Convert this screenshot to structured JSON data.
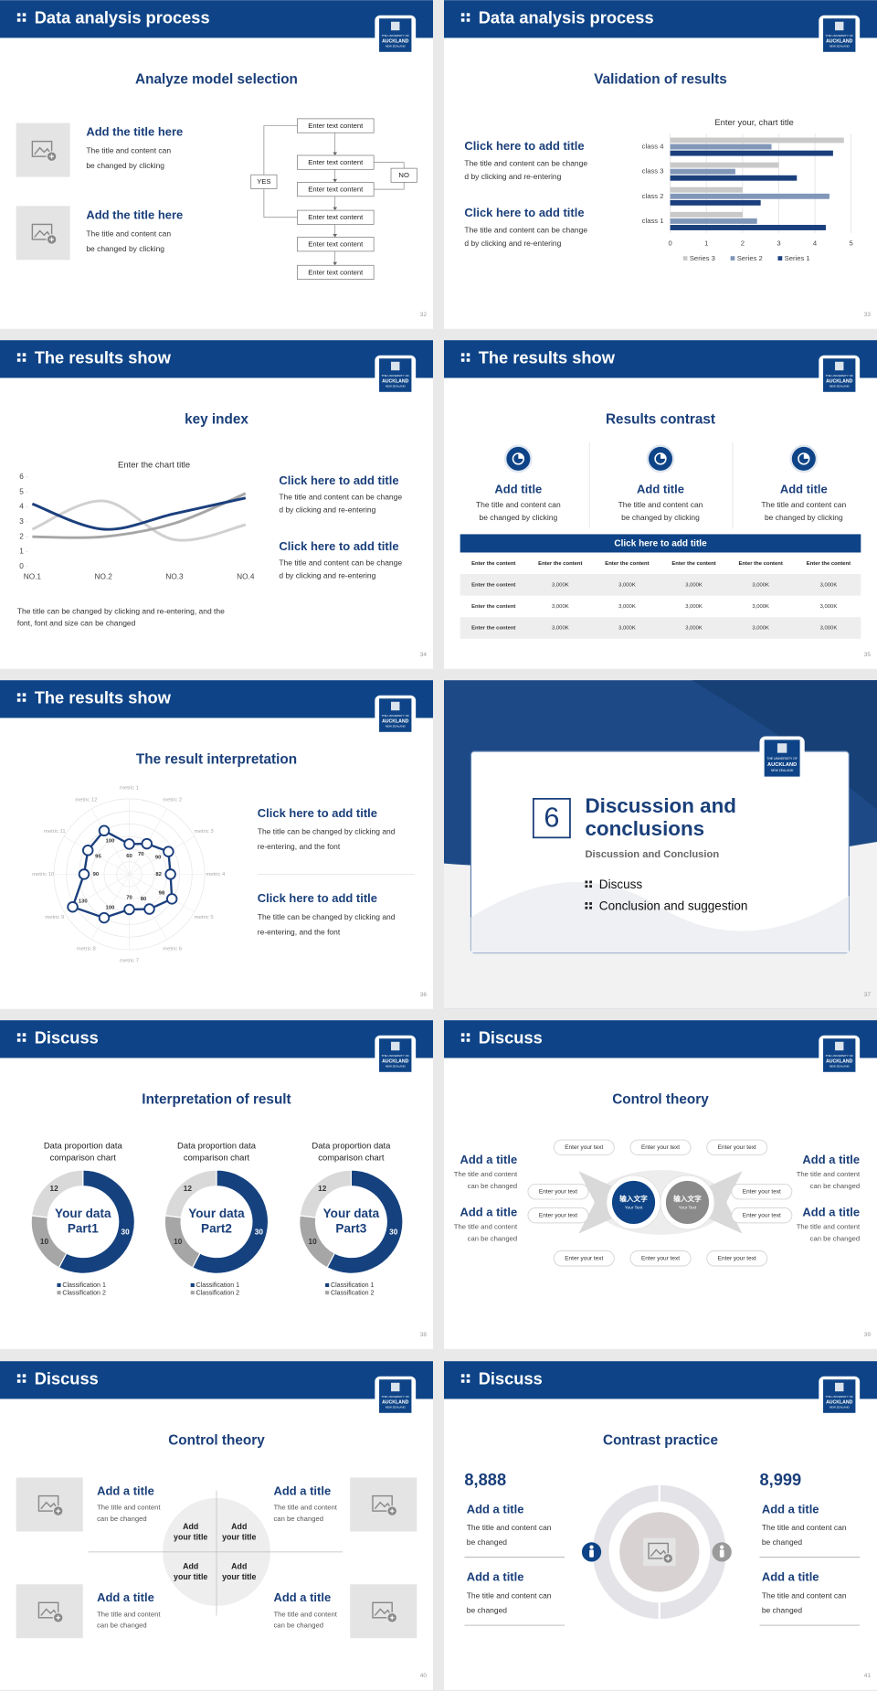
{
  "logo": [
    "THE UNIVERSITY OF",
    "AUCKLAND",
    "NEW ZEALAND"
  ],
  "slides": [
    {
      "header": "Data analysis process",
      "title": "Analyze model selection",
      "page": "32",
      "items": [
        {
          "title": "Add the title here",
          "text": [
            "The title and content can",
            "be changed by clicking"
          ]
        },
        {
          "title": "Add the title here",
          "text": [
            "The title and content can",
            "be changed by clicking"
          ]
        }
      ],
      "flow": {
        "boxes": [
          "Enter text content",
          "Enter text content",
          "Enter text content",
          "Enter text content",
          "Enter text content",
          "Enter text content"
        ],
        "yes": "YES",
        "no": "NO"
      }
    },
    {
      "header": "Data analysis process",
      "title": "Validation of results",
      "page": "33",
      "items": [
        {
          "title": "Click here to add title",
          "text": [
            "The title and content can be change",
            "d by clicking and re-entering"
          ]
        },
        {
          "title": "Click here to add title",
          "text": [
            "The title and content can be change",
            "d by clicking and re-entering"
          ]
        }
      ],
      "chart": {
        "type": "bar",
        "orientation": "horizontal",
        "title": "Enter your, chart title",
        "categories": [
          "class 1",
          "class 2",
          "class 3",
          "class 4"
        ],
        "series": [
          {
            "name": "Series 3",
            "color": "#c9c9c9",
            "values": [
              2.0,
              2.0,
              3.0,
              4.8
            ]
          },
          {
            "name": "Series 2",
            "color": "#8097b8",
            "values": [
              2.4,
              4.4,
              1.8,
              2.8
            ]
          },
          {
            "name": "Series 1",
            "color": "#1b3f7d",
            "values": [
              4.3,
              2.5,
              3.5,
              4.5
            ]
          }
        ],
        "xlim": [
          0,
          5
        ],
        "xticks": [
          0,
          1,
          2,
          3,
          4,
          5
        ],
        "grid": true,
        "legend": "bottom"
      }
    },
    {
      "header": "The results show",
      "title": "key index",
      "page": "34",
      "items": [
        {
          "title": "Click here to add title",
          "text": [
            "The title and content can be change",
            "d by clicking and re-entering"
          ]
        },
        {
          "title": "Click here to add title",
          "text": [
            "The title and content can be change",
            "d by clicking and re-entering"
          ]
        }
      ],
      "note": [
        "The title can be changed by clicking and re-entering, and the",
        "font, font and size can be changed"
      ],
      "chart": {
        "type": "line",
        "smooth": true,
        "title": "Enter the chart title",
        "categories": [
          "NO.1",
          "NO.2",
          "NO.3",
          "NO.4"
        ],
        "series": [
          {
            "color": "#d0d0d0",
            "values": [
              2.5,
              4.4,
              1.8,
              2.8
            ]
          },
          {
            "color": "#a6a6a6",
            "values": [
              2.0,
              2.0,
              2.9,
              4.9
            ]
          },
          {
            "color": "#1b3f7d",
            "values": [
              4.2,
              2.5,
              3.55,
              4.6
            ]
          }
        ],
        "ylim": [
          0,
          6
        ],
        "yticks": [
          0,
          1,
          2,
          3,
          4,
          5,
          6
        ]
      }
    },
    {
      "header": "The results show",
      "title": "Results contrast",
      "page": "35",
      "columns": [
        {
          "title": "Add title",
          "text": [
            "The title and content can",
            "be changed by clicking"
          ]
        },
        {
          "title": "Add title",
          "text": [
            "The title and content can",
            "be changed by clicking"
          ]
        },
        {
          "title": "Add title",
          "text": [
            "The title and content can",
            "be changed by clicking"
          ]
        }
      ],
      "table": {
        "caption": "Click here to add title",
        "header": [
          "Enter the content",
          "Enter the content",
          "Enter the content",
          "Enter the content",
          "Enter the content",
          "Enter the content"
        ],
        "rows": [
          [
            "Enter the content",
            "3,000K",
            "3,000K",
            "3,000K",
            "3,000K",
            "3,000K"
          ],
          [
            "Enter the content",
            "3,000K",
            "3,000K",
            "3,000K",
            "3,000K",
            "3,000K"
          ],
          [
            "Enter the content",
            "3,000K",
            "3,000K",
            "3,000K",
            "3,000K",
            "3,000K"
          ]
        ]
      }
    },
    {
      "header": "The results show",
      "title": "The result interpretation",
      "page": "36",
      "items": [
        {
          "title": "Click here to add title",
          "text": [
            "The title can be changed by clicking and",
            "re-entering, and the font"
          ]
        },
        {
          "title": "Click here to add title",
          "text": [
            "The title can be changed by clicking and",
            "re-entering, and the font"
          ]
        }
      ],
      "chart": {
        "type": "radar",
        "categories": [
          "metric 1",
          "metric 2",
          "metric 3",
          "metric 4",
          "metric 5",
          "metric 6",
          "metric 7",
          "metric 8",
          "metric 9",
          "metric 10",
          "metric 11",
          "metric 12"
        ],
        "values": [
          60,
          70,
          90,
          82,
          98,
          80,
          70,
          100,
          130,
          90,
          95,
          100
        ],
        "color": "#1b3f7d",
        "rlim": [
          0,
          150
        ]
      }
    },
    {
      "number": "6",
      "title": [
        "Discussion and",
        "conclusions"
      ],
      "subtitle": "Discussion and Conclusion",
      "bullets": [
        "Discuss",
        "Conclusion and suggestion"
      ],
      "page": "37"
    },
    {
      "header": "Discuss",
      "title": "Interpretation of result",
      "page": "38",
      "charts": [
        {
          "type": "donut",
          "title": [
            "Data proportion data",
            "comparison chart"
          ],
          "center": [
            "Your data",
            "Part1"
          ],
          "categories": [
            "Classification 1",
            "Classification 2",
            null
          ],
          "values": [
            30,
            10,
            12
          ],
          "colors": [
            "#15427f",
            "#a6a6a6",
            "#d9d9d9"
          ]
        },
        {
          "type": "donut",
          "title": [
            "Data proportion data",
            "comparison chart"
          ],
          "center": [
            "Your data",
            "Part2"
          ],
          "categories": [
            "Classification 1",
            "Classification 2",
            null
          ],
          "values": [
            30,
            10,
            12
          ],
          "colors": [
            "#15427f",
            "#a6a6a6",
            "#d9d9d9"
          ]
        },
        {
          "type": "donut",
          "title": [
            "Data proportion data",
            "comparison chart"
          ],
          "center": [
            "Your data",
            "Part3"
          ],
          "categories": [
            "Classification 1",
            "Classification 2",
            null
          ],
          "values": [
            30,
            10,
            12
          ],
          "colors": [
            "#15427f",
            "#a6a6a6",
            "#d9d9d9"
          ]
        }
      ]
    },
    {
      "header": "Discuss",
      "title": "Control theory",
      "page": "39",
      "items": [
        {
          "title": "Add a title",
          "text": [
            "The title and content",
            "can be changed"
          ]
        },
        {
          "title": "Add a title",
          "text": [
            "The title and content",
            "can be changed"
          ]
        },
        {
          "title": "Add a title",
          "text": [
            "The title and content",
            "can be changed"
          ]
        },
        {
          "title": "Add a title",
          "text": [
            "The title and content",
            "can be changed"
          ]
        }
      ],
      "pills": [
        "Enter your text",
        "Enter your text",
        "Enter your text",
        "Enter your text",
        "Enter your text",
        "Enter your text",
        "Enter your text",
        "Enter your text",
        "Enter your text",
        "Enter your text"
      ],
      "circles": [
        [
          "输入文字",
          "Your Text"
        ],
        [
          "输入文字",
          "Your Text"
        ]
      ]
    },
    {
      "header": "Discuss",
      "title": "Control theory",
      "page": "40",
      "items": [
        {
          "title": "Add a title",
          "text": [
            "The title and content",
            "can be changed"
          ]
        },
        {
          "title": "Add a title",
          "text": [
            "The title and content",
            "can be changed"
          ]
        },
        {
          "title": "Add a title",
          "text": [
            "The title and content",
            "can be changed"
          ]
        },
        {
          "title": "Add a title",
          "text": [
            "The title and content",
            "can be changed"
          ]
        }
      ],
      "quadrants": [
        [
          "Add",
          "your title"
        ],
        [
          "Add",
          "your title"
        ],
        [
          "Add",
          "your title"
        ],
        [
          "Add",
          "your title"
        ]
      ]
    },
    {
      "header": "Discuss",
      "title": "Contrast practice",
      "page": "41",
      "stats": [
        {
          "number": "8,888",
          "items": [
            {
              "title": "Add a title",
              "text": [
                "The title and content can",
                "be changed"
              ]
            },
            {
              "title": "Add a title",
              "text": [
                "The title and content can",
                "be changed"
              ]
            }
          ]
        },
        {
          "number": "8,999",
          "items": [
            {
              "title": "Add a title",
              "text": [
                "The title and content can",
                "be changed"
              ]
            },
            {
              "title": "Add a title",
              "text": [
                "The title and content can",
                "be changed"
              ]
            }
          ]
        }
      ]
    }
  ]
}
